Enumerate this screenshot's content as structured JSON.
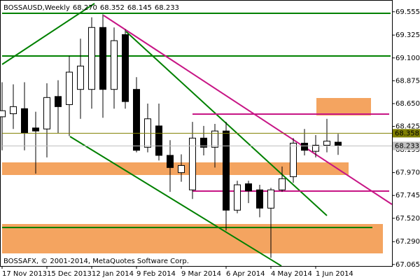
{
  "chart_data": {
    "type": "candlestick",
    "title": "BOSSAUSD,Weekly",
    "header_values": [
      "68.270",
      "68.352",
      "68.145",
      "68.233"
    ],
    "footer": "BOSSAFX, © 2001-2014, MetaQuotes Software Corp.",
    "categories": [
      "17 Nov 2013",
      null,
      null,
      null,
      "15 Dec 2013",
      null,
      null,
      null,
      "12 Jan 2014",
      null,
      null,
      null,
      "9 Feb 2014",
      null,
      null,
      null,
      "9 Mar 2014",
      null,
      null,
      null,
      "6 Apr 2014",
      null,
      null,
      null,
      "4 May 2014",
      null,
      null,
      null,
      "1 Jun 2014",
      null,
      null
    ],
    "open": [
      68.52,
      68.55,
      68.6,
      68.41,
      68.4,
      68.72,
      68.64,
      68.79,
      68.79,
      69.4,
      68.79,
      69.33,
      68.79,
      68.22,
      68.43,
      68.14,
      67.97,
      67.8,
      68.31,
      68.22,
      68.38,
      67.6,
      67.86,
      67.8,
      67.62,
      67.8,
      67.93,
      68.26,
      68.18,
      68.24,
      68.27
    ],
    "high": [
      68.86,
      68.84,
      68.86,
      68.57,
      68.85,
      68.88,
      69.12,
      69.29,
      69.5,
      69.53,
      69.4,
      69.38,
      68.91,
      68.65,
      68.65,
      68.29,
      68.15,
      68.47,
      68.43,
      68.45,
      68.47,
      67.89,
      67.89,
      67.85,
      67.82,
      68.03,
      68.31,
      68.4,
      68.34,
      68.5,
      68.352
    ],
    "low": [
      68.19,
      68.4,
      68.19,
      67.96,
      68.12,
      68.36,
      68.33,
      68.5,
      68.6,
      68.51,
      68.6,
      68.6,
      68.17,
      68.17,
      68.09,
      67.78,
      67.88,
      67.71,
      68.14,
      68.02,
      67.4,
      67.57,
      67.67,
      67.53,
      67.13,
      67.78,
      67.87,
      68.14,
      68.12,
      68.17,
      68.145
    ],
    "close": [
      68.58,
      68.62,
      68.36,
      68.38,
      68.71,
      68.62,
      68.96,
      69.02,
      69.4,
      68.79,
      69.27,
      68.67,
      68.19,
      68.5,
      68.14,
      68.02,
      68.04,
      68.31,
      68.22,
      68.38,
      67.6,
      67.85,
      67.79,
      67.62,
      67.8,
      67.91,
      68.26,
      68.19,
      68.24,
      68.28,
      68.233
    ],
    "bull_color": "#ffffff",
    "bear_color": "#000000",
    "ylim": [
      67.05,
      69.65
    ],
    "yticks": [
      69.555,
      69.325,
      {
        "value": 69.1,
        "label": "69.100"
      },
      68.875,
      {
        "value": 68.65,
        "label": "68.650"
      },
      68.425,
      68.195,
      {
        "value": 67.97,
        "label": "67.970"
      },
      67.745,
      {
        "value": 67.52,
        "label": "67.520"
      },
      {
        "value": 67.29,
        "label": "67.290"
      },
      67.065
    ],
    "price_lines": [
      {
        "value": 68.358,
        "color": "#808000"
      },
      {
        "value": 68.233,
        "color": "#c0c0c0"
      }
    ]
  }
}
